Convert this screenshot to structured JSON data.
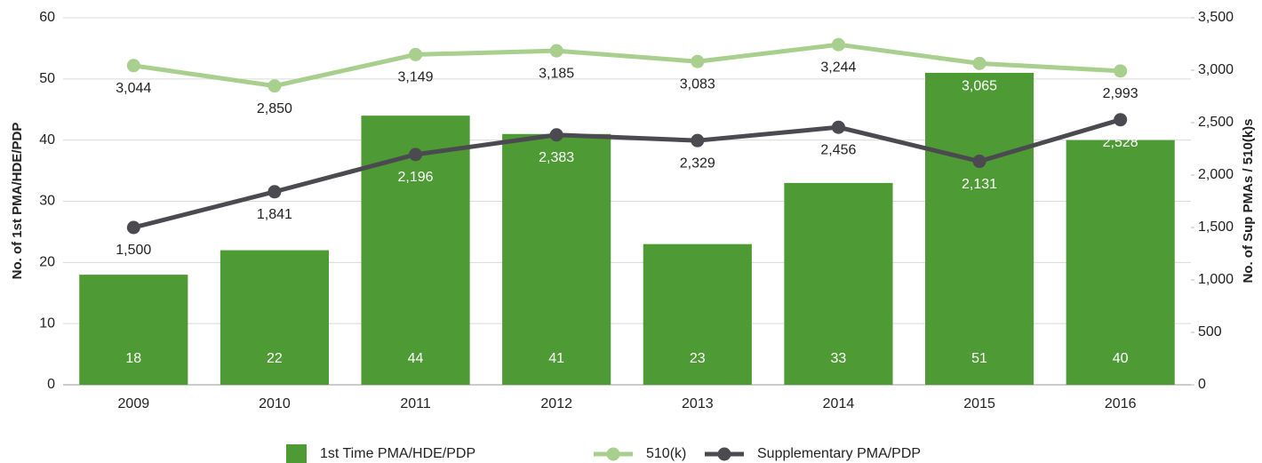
{
  "chart_data": {
    "type": "bar",
    "categories": [
      "2009",
      "2010",
      "2011",
      "2012",
      "2013",
      "2014",
      "2015",
      "2016"
    ],
    "ylabel": "No. of 1st PMA/HDE/PDP",
    "y2label": "No. of Sup PMAs / 510(k)s",
    "ylim": [
      0,
      60
    ],
    "yticks": [
      0,
      10,
      20,
      30,
      40,
      50,
      60
    ],
    "y2lim": [
      0,
      3500
    ],
    "y2ticks": [
      0,
      500,
      {
        "value": 1000,
        "label": "1,000"
      },
      {
        "value": 1500,
        "label": "1,500"
      },
      {
        "value": 2000,
        "label": "2,000"
      },
      {
        "value": 2500,
        "label": "2,500"
      },
      {
        "value": 3000,
        "label": "3,000"
      },
      {
        "value": 3500,
        "label": "3,500"
      }
    ],
    "grid": true,
    "legend": "bottom",
    "series": [
      {
        "name": "1st Time PMA/HDE/PDP",
        "type": "bar",
        "color": "#4e9b35",
        "values": [
          18,
          22,
          44,
          41,
          23,
          33,
          51,
          40
        ]
      },
      {
        "name": "510(k)",
        "type": "line",
        "axis": "y2",
        "color": "#a9cf8f",
        "values": [
          3044,
          2850,
          3149,
          3185,
          3083,
          3244,
          3065,
          2993
        ],
        "value_labels": [
          "3,044",
          "2,850",
          "3,149",
          "3,185",
          "3,083",
          "3,244",
          "3,065",
          "2,993"
        ]
      },
      {
        "name": "Supplementary PMA/PDP",
        "type": "line",
        "axis": "y2",
        "color": "#4a4a50",
        "values": [
          1500,
          1841,
          2196,
          2383,
          2329,
          2456,
          2131,
          2528
        ],
        "value_labels": [
          "1,500",
          "1,841",
          "2,196",
          "2,383",
          "2,329",
          "2,456",
          "2,131",
          "2,528"
        ]
      }
    ]
  }
}
